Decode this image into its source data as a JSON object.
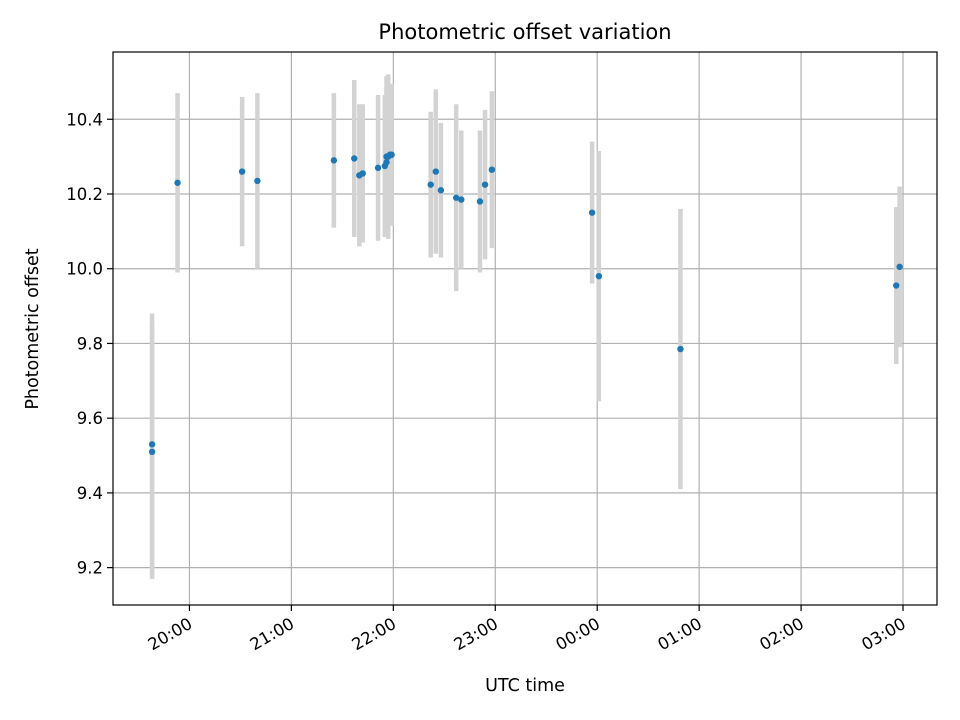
{
  "chart_data": {
    "type": "scatter",
    "title": "Photometric offset variation",
    "xlabel": "UTC time",
    "ylabel": "Photometric offset",
    "x_axis_type": "time",
    "xlim": [
      "19:15",
      "03:20"
    ],
    "ylim": [
      9.1,
      10.58
    ],
    "x_ticks": [
      "20:00",
      "21:00",
      "22:00",
      "23:00",
      "00:00",
      "01:00",
      "02:00",
      "03:00"
    ],
    "y_ticks": [
      "9.2",
      "9.4",
      "9.6",
      "9.8",
      "10.0",
      "10.2",
      "10.4"
    ],
    "grid": true,
    "errorbar_color": "#d3d3d3",
    "point_color": "#1f77b4",
    "points": [
      {
        "x": "19:38",
        "y": 9.51,
        "err": 0.34
      },
      {
        "x": "19:38",
        "y": 9.53,
        "err": 0.35
      },
      {
        "x": "19:53",
        "y": 10.23,
        "err": 0.24
      },
      {
        "x": "20:31",
        "y": 10.26,
        "err": 0.2
      },
      {
        "x": "20:40",
        "y": 10.235,
        "err": 0.235
      },
      {
        "x": "21:25",
        "y": 10.29,
        "err": 0.18
      },
      {
        "x": "21:37",
        "y": 10.295,
        "err": 0.21
      },
      {
        "x": "21:40",
        "y": 10.25,
        "err": 0.19
      },
      {
        "x": "21:42",
        "y": 10.255,
        "err": 0.185
      },
      {
        "x": "21:51",
        "y": 10.27,
        "err": 0.195
      },
      {
        "x": "21:55",
        "y": 10.275,
        "err": 0.19
      },
      {
        "x": "21:56",
        "y": 10.285,
        "err": 0.2
      },
      {
        "x": "21:56",
        "y": 10.3,
        "err": 0.215
      },
      {
        "x": "21:57",
        "y": 10.3,
        "err": 0.22
      },
      {
        "x": "21:58",
        "y": 10.305,
        "err": 0.185
      },
      {
        "x": "21:59",
        "y": 10.305,
        "err": 0.19
      },
      {
        "x": "22:22",
        "y": 10.225,
        "err": 0.195
      },
      {
        "x": "22:25",
        "y": 10.26,
        "err": 0.22
      },
      {
        "x": "22:28",
        "y": 10.21,
        "err": 0.18
      },
      {
        "x": "22:37",
        "y": 10.19,
        "err": 0.25
      },
      {
        "x": "22:40",
        "y": 10.185,
        "err": 0.185
      },
      {
        "x": "22:51",
        "y": 10.18,
        "err": 0.19
      },
      {
        "x": "22:54",
        "y": 10.225,
        "err": 0.2
      },
      {
        "x": "22:58",
        "y": 10.265,
        "err": 0.21
      },
      {
        "x": "23:57",
        "y": 10.15,
        "err": 0.19
      },
      {
        "x": "00:01",
        "y": 9.98,
        "err": 0.335
      },
      {
        "x": "00:49",
        "y": 9.785,
        "err": 0.375
      },
      {
        "x": "02:56",
        "y": 9.955,
        "err": 0.21
      },
      {
        "x": "02:58",
        "y": 10.005,
        "err": 0.215
      }
    ]
  }
}
